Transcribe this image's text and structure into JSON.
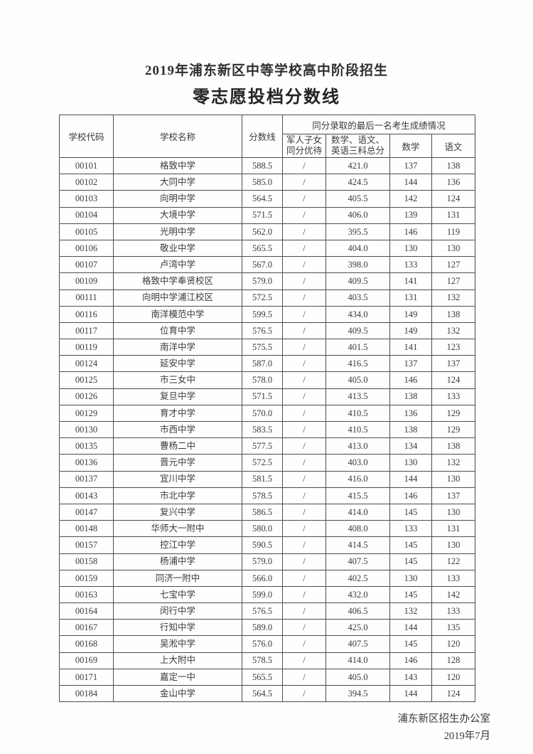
{
  "page": {
    "title": "2019年浦东新区中等学校高中阶段招生",
    "subtitle": "零志愿投档分数线",
    "footer": {
      "organization": "浦东新区招生办公室",
      "date": "2019年7月"
    }
  },
  "table": {
    "headers": {
      "school_code": "学校代码",
      "school_name": "学校名称",
      "score_line": "分数线",
      "group_header": "同分录取的最后一名考生成绩情况",
      "military_preference": "军人子女\n同分优待",
      "three_subject_total": "数学、语文、\n英语三科总分",
      "math": "数学",
      "chinese": "语文"
    },
    "column_names": [
      "school-code",
      "school-name",
      "score-line",
      "military-preference",
      "three-subject-total",
      "math-score",
      "chinese-score"
    ],
    "rows": [
      [
        "00101",
        "格致中学",
        "588.5",
        "/",
        "421.0",
        "137",
        "138"
      ],
      [
        "00102",
        "大同中学",
        "585.0",
        "/",
        "424.5",
        "144",
        "136"
      ],
      [
        "00103",
        "向明中学",
        "564.5",
        "/",
        "405.5",
        "142",
        "124"
      ],
      [
        "00104",
        "大境中学",
        "571.5",
        "/",
        "406.0",
        "139",
        "131"
      ],
      [
        "00105",
        "光明中学",
        "562.0",
        "/",
        "395.5",
        "146",
        "119"
      ],
      [
        "00106",
        "敬业中学",
        "565.5",
        "/",
        "404.0",
        "130",
        "130"
      ],
      [
        "00107",
        "卢湾中学",
        "567.0",
        "/",
        "398.0",
        "133",
        "127"
      ],
      [
        "00109",
        "格致中学奉贤校区",
        "579.0",
        "/",
        "409.5",
        "141",
        "127"
      ],
      [
        "00111",
        "向明中学浦江校区",
        "572.5",
        "/",
        "403.5",
        "131",
        "132"
      ],
      [
        "00116",
        "南洋模范中学",
        "599.5",
        "/",
        "434.0",
        "149",
        "138"
      ],
      [
        "00117",
        "位育中学",
        "576.5",
        "/",
        "409.5",
        "149",
        "132"
      ],
      [
        "00119",
        "南洋中学",
        "575.5",
        "/",
        "401.5",
        "141",
        "123"
      ],
      [
        "00124",
        "延安中学",
        "587.0",
        "/",
        "416.5",
        "137",
        "137"
      ],
      [
        "00125",
        "市三女中",
        "578.0",
        "/",
        "405.0",
        "146",
        "124"
      ],
      [
        "00126",
        "复旦中学",
        "571.5",
        "/",
        "413.5",
        "138",
        "133"
      ],
      [
        "00129",
        "育才中学",
        "570.0",
        "/",
        "410.5",
        "136",
        "129"
      ],
      [
        "00130",
        "市西中学",
        "583.5",
        "/",
        "410.5",
        "138",
        "129"
      ],
      [
        "00135",
        "曹杨二中",
        "577.5",
        "/",
        "413.0",
        "134",
        "138"
      ],
      [
        "00136",
        "晋元中学",
        "572.5",
        "/",
        "403.0",
        "130",
        "132"
      ],
      [
        "00137",
        "宜川中学",
        "581.5",
        "/",
        "416.0",
        "144",
        "130"
      ],
      [
        "00143",
        "市北中学",
        "578.5",
        "/",
        "415.5",
        "146",
        "137"
      ],
      [
        "00147",
        "复兴中学",
        "586.5",
        "/",
        "414.0",
        "145",
        "130"
      ],
      [
        "00148",
        "华师大一附中",
        "580.0",
        "/",
        "408.0",
        "133",
        "131"
      ],
      [
        "00157",
        "控江中学",
        "590.5",
        "/",
        "414.5",
        "145",
        "130"
      ],
      [
        "00158",
        "杨浦中学",
        "579.0",
        "/",
        "407.5",
        "145",
        "122"
      ],
      [
        "00159",
        "同济一附中",
        "566.0",
        "/",
        "402.5",
        "130",
        "133"
      ],
      [
        "00163",
        "七宝中学",
        "599.0",
        "/",
        "432.0",
        "145",
        "142"
      ],
      [
        "00164",
        "闵行中学",
        "576.5",
        "/",
        "406.5",
        "132",
        "133"
      ],
      [
        "00167",
        "行知中学",
        "589.0",
        "/",
        "425.0",
        "144",
        "135"
      ],
      [
        "00168",
        "吴淞中学",
        "576.0",
        "/",
        "407.5",
        "145",
        "120"
      ],
      [
        "00169",
        "上大附中",
        "578.5",
        "/",
        "414.0",
        "146",
        "128"
      ],
      [
        "00171",
        "嘉定一中",
        "565.5",
        "/",
        "405.0",
        "143",
        "120"
      ],
      [
        "00184",
        "金山中学",
        "564.5",
        "/",
        "394.5",
        "144",
        "124"
      ]
    ]
  },
  "colors": {
    "text": "#3a3a3a",
    "border": "#4d4d4d",
    "background": "#fefefe"
  }
}
